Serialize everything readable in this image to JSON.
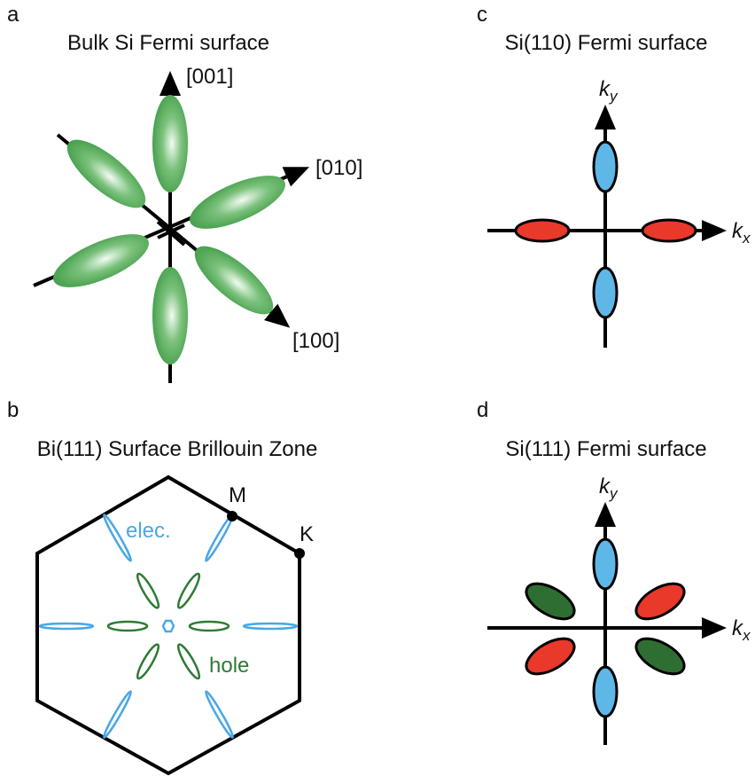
{
  "panels": [
    {
      "letter": "a",
      "title": "Bulk Si Fermi surface",
      "axis_labels": [
        "[001]",
        "[010]",
        "[100]"
      ]
    },
    {
      "letter": "b",
      "title": "Bi(111) Surface Brillouin Zone",
      "points": [
        "M",
        "K"
      ],
      "annotations": [
        "elec.",
        "hole"
      ]
    },
    {
      "letter": "c",
      "title": "Si(110) Fermi surface",
      "axis_labels": [
        {
          "base": "k",
          "sub": "y"
        },
        {
          "base": "k",
          "sub": "x"
        }
      ]
    },
    {
      "letter": "d",
      "title": "Si(111) Fermi surface",
      "axis_labels": [
        {
          "base": "k",
          "sub": "y"
        },
        {
          "base": "k",
          "sub": "x"
        }
      ]
    }
  ]
}
